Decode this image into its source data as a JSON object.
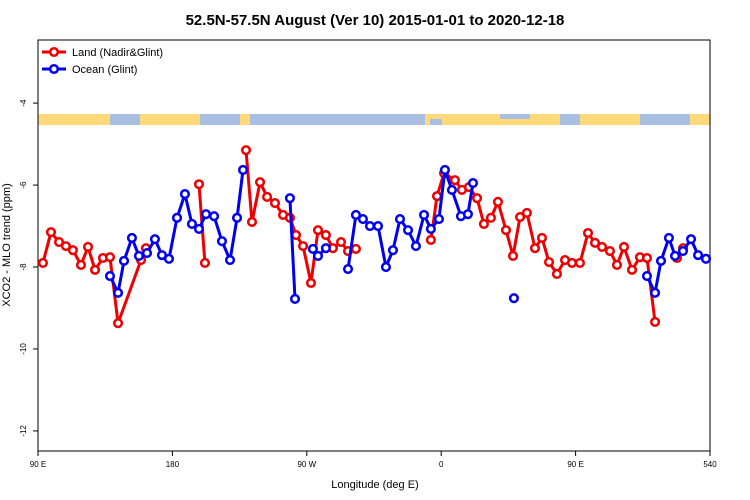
{
  "chart_data": {
    "type": "line",
    "title": "52.5N-57.5N August (Ver 10)   2015-01-01 to 2020-12-18",
    "xlabel": "Longitude (deg E)",
    "ylabel": "XCO2 - MLO trend (ppm)",
    "xlim": [
      90,
      540
    ],
    "xticks": [
      {
        "value": 90,
        "label": "90 E"
      },
      180,
      {
        "value": 270,
        "label": "90 W"
      },
      {
        "value": 360,
        "label": "0"
      },
      {
        "value": 450,
        "label": "90 E"
      },
      540
    ],
    "ylim": [
      -12.49,
      -2.46
    ],
    "yticks": [
      -4,
      -6,
      -8,
      -10,
      -12
    ],
    "legend": "top-left",
    "series": [
      {
        "name": "Land (Nadir&Glint)",
        "color": "#ee0000",
        "x": [
          93.3,
          98.7,
          104.1,
          108.7,
          113.4,
          118.8,
          123.5,
          128.2,
          133.5,
          138.2,
          143.6,
          159.0,
          162.3,
          null,
          197.8,
          201.8,
          null,
          229.3,
          233.3,
          238.7,
          243.4,
          248.7,
          254.1,
          258.7,
          262.8,
          267.5,
          272.8,
          277.5,
          282.8,
          287.5,
          292.9,
          297.6,
          302.9,
          null,
          353.1,
          357.2,
          361.9,
          369.2,
          373.9,
          378.6,
          384.0,
          388.6,
          393.3,
          398.0,
          403.4,
          408.1,
          412.8,
          417.4,
          422.8,
          427.5,
          432.2,
          437.5,
          442.9,
          447.6,
          452.9,
          458.3,
          463.0,
          467.7,
          473.0,
          477.7,
          482.4,
          487.8,
          493.1,
          497.8,
          503.2,
          null,
          517.9,
          522.0
        ],
        "values": [
          -7.9,
          -7.15,
          -7.39,
          -7.49,
          -7.59,
          -7.95,
          -7.51,
          -8.07,
          -7.78,
          -7.76,
          -9.37,
          -7.83,
          -7.54,
          null,
          -5.98,
          -7.9,
          null,
          -5.15,
          -6.9,
          -5.93,
          -6.29,
          -6.44,
          -6.73,
          -6.8,
          -7.22,
          -7.49,
          -8.39,
          -7.1,
          -7.22,
          -7.54,
          -7.39,
          -7.61,
          -7.56,
          null,
          -7.34,
          -6.27,
          -5.71,
          -5.88,
          -6.12,
          -6.05,
          -6.32,
          -6.95,
          -6.8,
          -6.41,
          -7.1,
          -7.73,
          -6.78,
          -6.68,
          -7.54,
          -7.29,
          -7.88,
          -8.17,
          -7.83,
          -7.9,
          -7.9,
          -7.17,
          -7.41,
          -7.51,
          -7.61,
          -7.95,
          -7.51,
          -8.07,
          -7.76,
          -7.78,
          -9.34,
          null,
          -7.78,
          -7.54
        ]
      },
      {
        "name": "Ocean (Glint)",
        "color": "#0000ee",
        "x": [
          138.2,
          143.6,
          147.6,
          152.9,
          157.6,
          163.0,
          168.3,
          173.0,
          177.7,
          183.1,
          188.4,
          193.1,
          197.8,
          202.5,
          207.9,
          213.2,
          218.6,
          223.3,
          227.3,
          null,
          258.7,
          262.1,
          null,
          274.1,
          277.5,
          282.8,
          null,
          297.6,
          302.9,
          307.6,
          312.3,
          317.7,
          323.0,
          327.7,
          332.4,
          337.8,
          343.1,
          348.5,
          353.1,
          358.5,
          362.5,
          367.2,
          373.2,
          377.9,
          381.3,
          null,
          408.7,
          null,
          497.8,
          503.2,
          507.2,
          512.5,
          516.6,
          521.9,
          527.3,
          532.0,
          537.3
        ],
        "values": [
          -8.22,
          -8.63,
          -7.85,
          -7.29,
          -7.73,
          -7.66,
          -7.32,
          -7.71,
          -7.8,
          -6.8,
          -6.22,
          -6.95,
          -7.07,
          -6.71,
          -6.76,
          -7.37,
          -7.83,
          -6.8,
          -5.63,
          null,
          -6.32,
          -8.78,
          null,
          -7.56,
          -7.73,
          -7.54,
          null,
          -8.05,
          -6.73,
          -6.83,
          -7.0,
          -7.0,
          -8.0,
          -7.59,
          -6.83,
          -7.1,
          -7.49,
          -6.73,
          -7.07,
          -6.83,
          -5.63,
          -6.12,
          -6.76,
          -6.71,
          -5.95,
          null,
          -8.76,
          null,
          -8.22,
          -8.63,
          -7.85,
          -7.29,
          -7.73,
          -7.61,
          -7.32,
          -7.71,
          -7.8
        ]
      }
    ]
  }
}
